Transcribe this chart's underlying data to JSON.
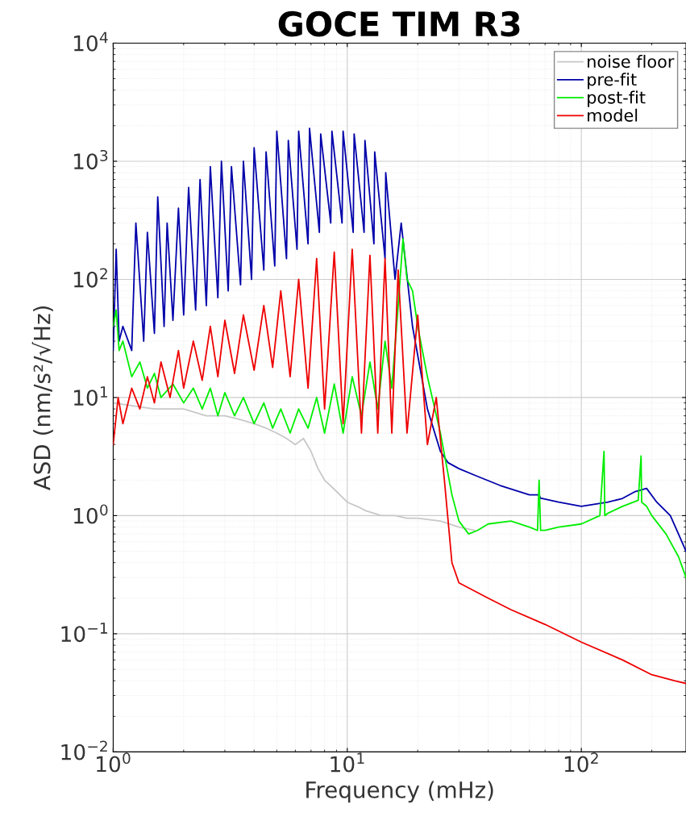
{
  "chart_data": {
    "type": "line",
    "title": "GOCE TIM R3",
    "xlabel": "Frequency (mHz)",
    "ylabel": "ASD (nm/s²/√Hz)",
    "log": "xy",
    "grid": true,
    "legend": "top right",
    "line_style": "solid",
    "marker": "none",
    "xlim": [
      1,
      280
    ],
    "ylim": [
      0.01,
      10000
    ],
    "xticks": [
      {
        "value": 1,
        "label": "10$^{0}$"
      },
      {
        "value": 10,
        "label": "10$^{1}$"
      },
      {
        "value": 100,
        "label": "10$^{2}$"
      }
    ],
    "yticks": [
      {
        "value": 0.01,
        "label": "10$^{−2}$"
      },
      {
        "value": 0.1,
        "label": "10$^{−1}$"
      },
      {
        "value": 1,
        "label": "10$^{0}$"
      },
      {
        "value": 10,
        "label": "10$^{1}$"
      },
      {
        "value": 100,
        "label": "10$^{2}$"
      },
      {
        "value": 1000,
        "label": "10$^{3}$"
      },
      {
        "value": 10000,
        "label": "10$^{4}$"
      }
    ],
    "series": [
      {
        "name": "noise floor",
        "color": "#c8c8c8",
        "x": [
          1,
          1.5,
          2,
          2.5,
          3,
          3.5,
          4,
          4.5,
          5,
          5.5,
          6,
          6.5,
          7,
          7.5,
          8,
          9,
          10,
          11,
          12,
          14,
          16,
          18,
          20,
          25,
          30,
          35
        ],
        "values": [
          9,
          8,
          8,
          7,
          7,
          6.5,
          6,
          5.5,
          5,
          4.5,
          4,
          4.5,
          3.5,
          2.5,
          2,
          1.6,
          1.3,
          1.2,
          1.1,
          1.0,
          1.0,
          0.95,
          0.95,
          0.9,
          0.8,
          0.75
        ]
      },
      {
        "name": "pre-fit",
        "color": "#0000aa",
        "x": [
          1.0,
          1.03,
          1.06,
          1.1,
          1.2,
          1.25,
          1.35,
          1.4,
          1.5,
          1.55,
          1.65,
          1.7,
          1.8,
          1.9,
          2.0,
          2.1,
          2.25,
          2.35,
          2.5,
          2.6,
          2.8,
          2.9,
          3.1,
          3.2,
          3.5,
          3.6,
          3.9,
          4.0,
          4.4,
          4.5,
          4.9,
          5.0,
          5.5,
          5.6,
          6.1,
          6.2,
          6.8,
          6.9,
          7.6,
          7.7,
          8.5,
          8.6,
          9.5,
          9.6,
          10.6,
          10.7,
          11.8,
          11.9,
          13.0,
          13.1,
          14.5,
          14.6,
          16,
          17,
          19,
          22,
          25,
          27,
          30,
          35,
          45,
          60,
          66,
          67,
          68,
          80,
          100,
          130,
          150,
          170,
          190,
          210,
          240,
          260,
          280
        ],
        "values": [
          25,
          180,
          30,
          40,
          25,
          300,
          30,
          250,
          35,
          500,
          40,
          300,
          45,
          400,
          50,
          600,
          55,
          700,
          60,
          900,
          70,
          1000,
          80,
          900,
          90,
          1000,
          100,
          1300,
          120,
          1200,
          130,
          1800,
          150,
          1500,
          180,
          1800,
          200,
          1900,
          250,
          1700,
          300,
          1800,
          300,
          1800,
          250,
          1700,
          250,
          1500,
          200,
          1200,
          150,
          800,
          100,
          300,
          40,
          8,
          3.5,
          2.8,
          2.5,
          2.2,
          1.8,
          1.5,
          1.5,
          1.4,
          1.4,
          1.3,
          1.2,
          1.3,
          1.4,
          1.6,
          1.7,
          1.3,
          1.0,
          0.7,
          0.5
        ]
      },
      {
        "name": "post-fit",
        "color": "#00ee00",
        "x": [
          1.0,
          1.03,
          1.06,
          1.1,
          1.2,
          1.3,
          1.4,
          1.5,
          1.6,
          1.8,
          2.0,
          2.2,
          2.4,
          2.6,
          2.8,
          3.0,
          3.3,
          3.6,
          4.0,
          4.4,
          4.8,
          5.2,
          5.7,
          6.2,
          6.8,
          7.4,
          8.0,
          8.8,
          9.6,
          10.5,
          11.5,
          12.5,
          13.5,
          14.5,
          15.5,
          16.5,
          17.3,
          18,
          19,
          20,
          22,
          25,
          28,
          30,
          33,
          36,
          40,
          50,
          60,
          65,
          66,
          67,
          70,
          80,
          100,
          120,
          125,
          126,
          130,
          150,
          175,
          180,
          181,
          190,
          200,
          230,
          260,
          280
        ],
        "values": [
          40,
          55,
          25,
          30,
          15,
          20,
          12,
          16,
          10,
          13,
          9,
          12,
          8,
          12,
          7,
          11,
          7,
          10,
          6,
          9,
          5.5,
          8,
          5,
          8,
          5.5,
          10,
          5,
          13,
          5,
          15,
          7,
          20,
          8,
          30,
          12,
          60,
          220,
          100,
          80,
          40,
          15,
          5,
          1.5,
          0.9,
          0.7,
          0.75,
          0.85,
          0.9,
          0.8,
          0.75,
          2.0,
          0.75,
          0.75,
          0.8,
          0.85,
          1.0,
          3.5,
          1.0,
          1.05,
          1.2,
          1.35,
          3.2,
          1.3,
          1.2,
          1.0,
          0.7,
          0.45,
          0.3
        ]
      },
      {
        "name": "model",
        "color": "#ee0000",
        "x": [
          1.0,
          1.05,
          1.1,
          1.2,
          1.3,
          1.4,
          1.5,
          1.6,
          1.75,
          1.9,
          2.0,
          2.2,
          2.4,
          2.6,
          2.8,
          3.0,
          3.3,
          3.6,
          4.0,
          4.4,
          4.8,
          5.2,
          5.7,
          6.2,
          6.8,
          7.4,
          8.0,
          8.8,
          9.6,
          10.5,
          11.5,
          12.5,
          13.5,
          14.5,
          15.5,
          16.5,
          18,
          20,
          22,
          24,
          26,
          28,
          30,
          40,
          50,
          70,
          100,
          150,
          200,
          250,
          280
        ],
        "values": [
          4,
          10,
          6,
          12,
          8,
          15,
          9,
          20,
          10,
          25,
          12,
          30,
          14,
          40,
          15,
          45,
          16,
          50,
          17,
          60,
          18,
          80,
          15,
          100,
          12,
          150,
          8,
          170,
          6,
          180,
          5,
          160,
          5,
          150,
          5,
          120,
          5,
          50,
          4,
          10,
          2,
          0.4,
          0.27,
          0.2,
          0.16,
          0.12,
          0.085,
          0.06,
          0.045,
          0.04,
          0.038
        ]
      }
    ]
  }
}
